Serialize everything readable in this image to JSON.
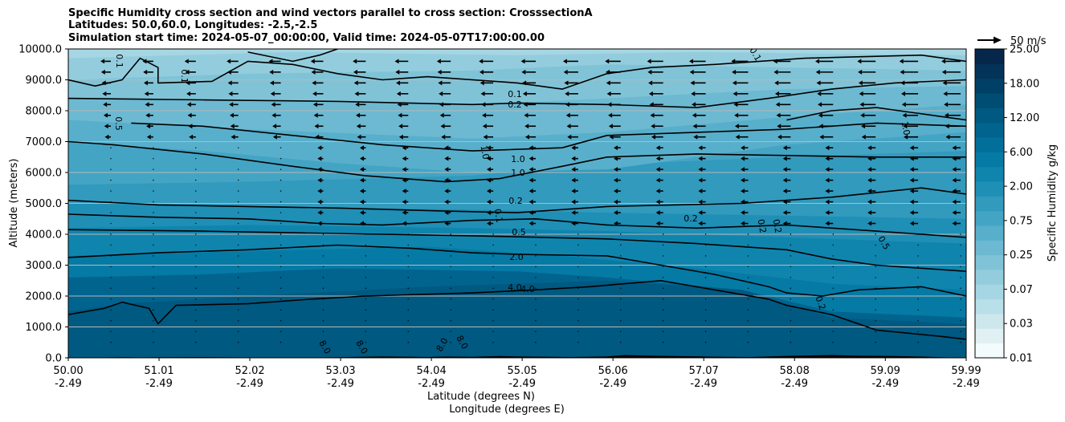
{
  "chart_data": {
    "type": "heatmap",
    "title_lines": [
      "Specific Humidity cross section and wind vectors parallel to cross section: CrosssectionA",
      "Latitudes: 50.0,60.0, Longitudes: -2.5,-2.5",
      "Simulation start time: 2024-05-07_00:00:00, Valid time: 2024-05-07T17:00:00.00"
    ],
    "ylabel": "Altitude (meters)",
    "xlabel_lat": "Latitude (degrees N)",
    "xlabel_lon": "Longitude (degrees E)",
    "ylim": [
      0,
      10000
    ],
    "y_ticks": [
      "0.0",
      "1000.0",
      "2000.0",
      "3000.0",
      "4000.0",
      "5000.0",
      "6000.0",
      "7000.0",
      "8000.0",
      "9000.0",
      "10000.0"
    ],
    "xlim": [
      50.0,
      59.99
    ],
    "x_ticks": [
      {
        "lat": "50.00",
        "lon": "-2.49"
      },
      {
        "lat": "51.01",
        "lon": "-2.49"
      },
      {
        "lat": "52.02",
        "lon": "-2.49"
      },
      {
        "lat": "53.03",
        "lon": "-2.49"
      },
      {
        "lat": "54.04",
        "lon": "-2.49"
      },
      {
        "lat": "55.05",
        "lon": "-2.49"
      },
      {
        "lat": "56.06",
        "lon": "-2.49"
      },
      {
        "lat": "57.07",
        "lon": "-2.49"
      },
      {
        "lat": "58.08",
        "lon": "-2.49"
      },
      {
        "lat": "59.09",
        "lon": "-2.49"
      },
      {
        "lat": "59.99",
        "lon": "-2.49"
      }
    ],
    "colorbar": {
      "label": "Specific Humidity g/kg",
      "ticks": [
        "0.01",
        "0.03",
        "0.07",
        "0.25",
        "0.75",
        "2.00",
        "6.00",
        "12.00",
        "18.00",
        "25.00"
      ],
      "colors": [
        "#f4fbfc",
        "#e0f0f3",
        "#cde7ed",
        "#b9dfe8",
        "#a6d6e3",
        "#93cddd",
        "#80c3d7",
        "#6cb9d1",
        "#58afcb",
        "#44a4c4",
        "#319abd",
        "#1f8fb6",
        "#0f85ae",
        "#057aa5",
        "#026f9b",
        "#01648f",
        "#005981",
        "#004d73",
        "#014066",
        "#033358",
        "#06264a"
      ]
    },
    "wind_reference": "50 m/s",
    "contour_labels": [
      "0.1",
      "0.1",
      "0.1",
      "0.1",
      "0.2",
      "0.5",
      "1.0",
      "1.0",
      "1.0",
      "0.2",
      "0.1",
      "0.5",
      "2.0",
      "4.0",
      "4.0",
      "0.2",
      "0.2",
      "0.2",
      "0.5",
      "0.2",
      "1.0",
      "8.0",
      "8.0",
      "8.0",
      "8.0"
    ],
    "terrain_color": "#000000"
  }
}
